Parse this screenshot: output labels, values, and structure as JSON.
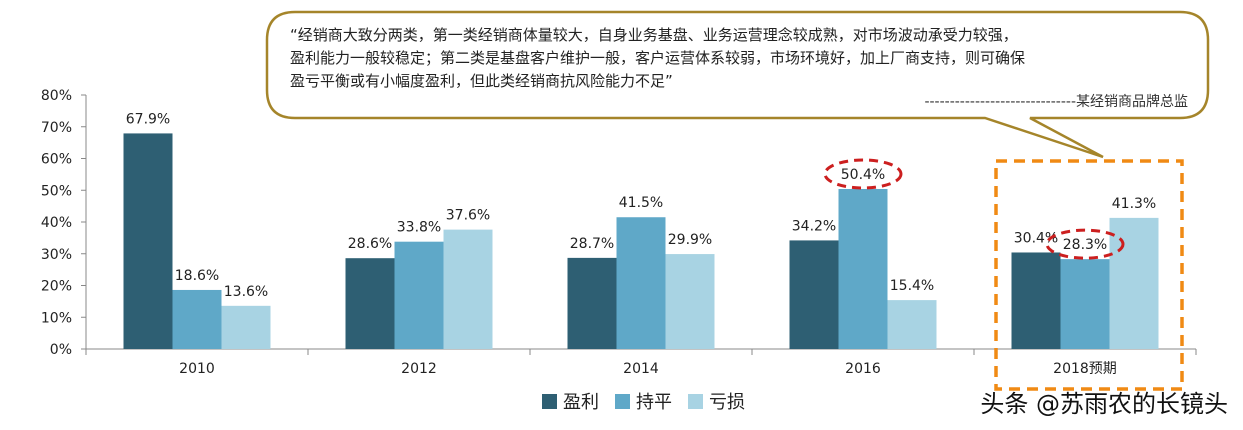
{
  "chart_data": {
    "type": "bar",
    "categories": [
      "2010",
      "2012",
      "2014",
      "2016",
      "2018预期"
    ],
    "series": [
      {
        "name": "盈利",
        "color": "#2e5f73",
        "values": [
          67.9,
          28.6,
          28.7,
          34.2,
          30.4
        ]
      },
      {
        "name": "持平",
        "color": "#5fa8c8",
        "values": [
          18.6,
          33.8,
          41.5,
          50.4,
          28.3
        ]
      },
      {
        "name": "亏损",
        "color": "#a8d3e3",
        "values": [
          13.6,
          37.6,
          29.9,
          15.4,
          41.3
        ]
      }
    ],
    "y_ticks": [
      "0%",
      "10%",
      "20%",
      "30%",
      "40%",
      "50%",
      "60%",
      "70%",
      "80%"
    ],
    "ylim": [
      0,
      80
    ],
    "value_suffix": "%",
    "legend_position": "bottom-center",
    "highlighted_points": [
      {
        "series": "持平",
        "category": "2016"
      },
      {
        "series": "持平",
        "category": "2018预期"
      }
    ],
    "highlighted_category": "2018预期"
  },
  "quote": {
    "lines": [
      "“经销商大致分两类，第一类经销商体量较大，自身业务基盘、业务运营理念较成熟，对市场波动承受力较强，",
      "盈利能力一般较稳定；第二类是基盘客户维护一般，客户运营体系较弱，市场环境好，加上厂商支持，则可确保",
      "盈亏平衡或有小幅度盈利，但此类经销商抗风险能力不足”"
    ],
    "attribution": "------------------------------某经销商品牌总监"
  },
  "watermark": {
    "brand": "头条 @苏雨农的长镜头"
  },
  "colors": {
    "callout_border": "#a5852a",
    "highlight_dashed_red": "#cc1f1f",
    "highlight_dashed_orange": "#f08a14",
    "axis": "#888888"
  }
}
